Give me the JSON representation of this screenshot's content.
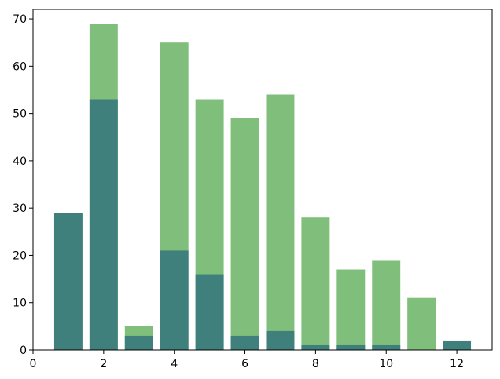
{
  "chart_data": {
    "type": "bar",
    "title": "",
    "xlabel": "",
    "ylabel": "",
    "x": [
      1,
      2,
      3,
      4,
      5,
      6,
      7,
      8,
      9,
      10,
      11,
      12
    ],
    "series": [
      {
        "color": "#7fbf7b",
        "values": [
          0,
          69,
          5,
          65,
          53,
          49,
          54,
          28,
          17,
          19,
          11,
          0
        ]
      },
      {
        "color": "#3f7f7c",
        "values": [
          29,
          53,
          3,
          21,
          16,
          3,
          4,
          1,
          1,
          1,
          0,
          2
        ]
      }
    ],
    "xlim": [
      0,
      13
    ],
    "ylim": [
      0,
      72
    ],
    "xticks": [
      "0",
      "2",
      "4",
      "6",
      "8",
      "10",
      "12"
    ],
    "yticks": [
      "0",
      "10",
      "20",
      "30",
      "40",
      "50",
      "60",
      "70"
    ],
    "grid": false,
    "bar_width": 0.8
  }
}
